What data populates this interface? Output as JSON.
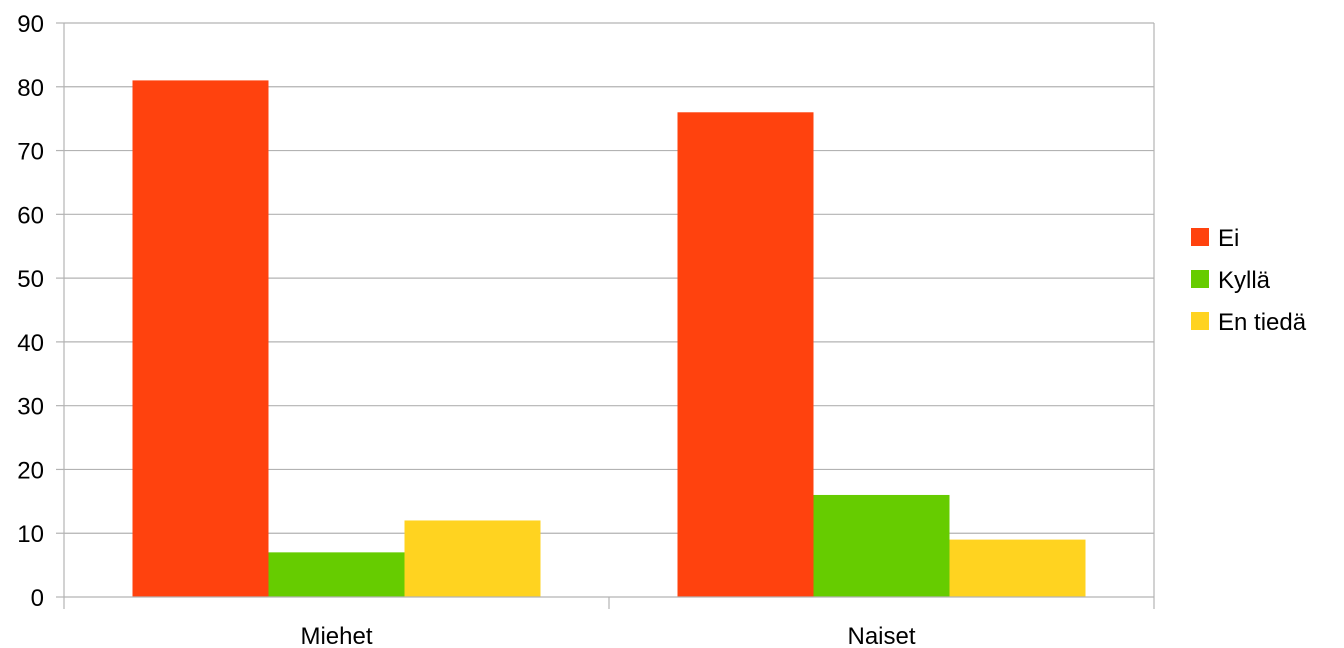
{
  "chart_data": {
    "type": "bar",
    "title": "",
    "xlabel": "",
    "ylabel": "",
    "categories": [
      "Miehet",
      "Naiset"
    ],
    "series": [
      {
        "name": "Ei",
        "values": [
          81,
          76
        ],
        "color": "#ff420e"
      },
      {
        "name": "Kyllä",
        "values": [
          7,
          16
        ],
        "color": "#66cc00"
      },
      {
        "name": "En tiedä",
        "values": [
          12,
          9
        ],
        "color": "#ffd320"
      }
    ],
    "ylim": [
      0,
      90
    ],
    "yticks": [
      0,
      10,
      20,
      30,
      40,
      50,
      60,
      70,
      80,
      90
    ],
    "grid": true,
    "legend": "right"
  }
}
